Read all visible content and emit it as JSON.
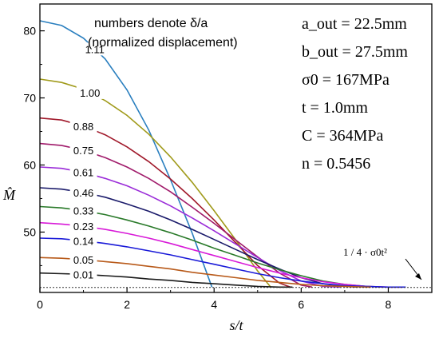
{
  "chart_data": {
    "type": "line",
    "xlabel": "s/t",
    "ylabel": "M̂",
    "xlim": [
      0,
      9
    ],
    "ylim": [
      41,
      84
    ],
    "x_ticks": [
      0,
      2,
      4,
      6,
      8
    ],
    "y_ticks": [
      50,
      60,
      70,
      80
    ],
    "grid": false,
    "annotations": {
      "note_line1": "numbers denote δ/a",
      "note_line2": "(normalized displacement)",
      "reference_label": "1 / 4 · σ0t²",
      "reference_value": 41.75,
      "parameters": [
        "a_out = 22.5mm",
        "b_out = 27.5mm",
        "σ0 = 167MPa",
        "t = 1.0mm",
        "C = 364MPa",
        "n = 0.5456"
      ]
    },
    "series": [
      {
        "name": "1.11",
        "color": "#2a7fbf",
        "x": [
          0,
          0.5,
          1.0,
          1.5,
          2.0,
          2.5,
          3.0,
          3.5,
          3.95
        ],
        "y": [
          81.5,
          80.8,
          78.9,
          75.8,
          71.2,
          65.2,
          57.8,
          49.8,
          41.8
        ]
      },
      {
        "name": "1.00",
        "color": "#a09a1a",
        "x": [
          0,
          0.5,
          1.0,
          1.5,
          2.0,
          2.5,
          3.0,
          3.5,
          4.0,
          4.5,
          5.0,
          5.3
        ],
        "y": [
          72.8,
          72.3,
          71.3,
          69.6,
          67.4,
          64.6,
          61.2,
          57.4,
          53.2,
          48.8,
          44.2,
          41.8
        ]
      },
      {
        "name": "0.88",
        "color": "#a0182a",
        "x": [
          0,
          0.5,
          1.0,
          1.5,
          2.0,
          2.5,
          3.0,
          3.5,
          4.0,
          4.5,
          5.0,
          5.5,
          5.75
        ],
        "y": [
          67.0,
          66.7,
          65.8,
          64.5,
          62.7,
          60.5,
          57.9,
          55.0,
          51.8,
          48.4,
          45.0,
          42.4,
          41.8
        ]
      },
      {
        "name": "0.75",
        "color": "#a01a6a",
        "x": [
          0,
          0.5,
          1.0,
          1.5,
          2.0,
          2.5,
          3.0,
          3.5,
          4.0,
          4.5,
          5.0,
          5.5,
          6.0,
          6.25
        ],
        "y": [
          63.2,
          62.9,
          62.2,
          61.1,
          59.7,
          58.0,
          56.0,
          53.7,
          51.3,
          48.8,
          46.3,
          43.9,
          42.1,
          41.8
        ]
      },
      {
        "name": "0.61",
        "color": "#9a2bd8",
        "x": [
          0,
          0.5,
          1.0,
          1.5,
          2.0,
          2.5,
          3.0,
          3.5,
          4.0,
          4.5,
          5.0,
          5.5,
          6.0,
          6.5,
          6.9
        ],
        "y": [
          59.7,
          59.5,
          58.9,
          58.0,
          56.9,
          55.5,
          53.9,
          52.1,
          50.2,
          48.2,
          46.2,
          44.3,
          42.7,
          41.9,
          41.8
        ]
      },
      {
        "name": "0.46",
        "color": "#1a1a6a",
        "x": [
          0,
          0.5,
          1.0,
          1.5,
          2.0,
          2.5,
          3.0,
          3.5,
          4.0,
          4.5,
          5.0,
          5.5,
          6.0,
          6.5,
          7.0,
          7.3
        ],
        "y": [
          56.6,
          56.4,
          55.9,
          55.2,
          54.2,
          53.1,
          51.8,
          50.4,
          48.9,
          47.4,
          45.9,
          44.5,
          43.2,
          42.3,
          41.9,
          41.8
        ]
      },
      {
        "name": "0.33",
        "color": "#2a7a2a",
        "x": [
          0,
          0.5,
          1.0,
          1.5,
          2.0,
          2.5,
          3.0,
          3.5,
          4.0,
          4.5,
          5.0,
          5.5,
          6.0,
          6.5,
          7.0,
          7.5,
          7.9
        ],
        "y": [
          53.8,
          53.6,
          53.2,
          52.6,
          51.8,
          50.9,
          49.9,
          48.8,
          47.6,
          46.5,
          45.4,
          44.4,
          43.5,
          42.7,
          42.2,
          41.9,
          41.8
        ]
      },
      {
        "name": "0.23",
        "color": "#d81ad8",
        "x": [
          0,
          0.5,
          1.0,
          1.5,
          2.0,
          2.5,
          3.0,
          3.5,
          4.0,
          4.5,
          5.0,
          5.5,
          6.0,
          6.5,
          7.0,
          7.5,
          8.0,
          8.3
        ],
        "y": [
          51.4,
          51.2,
          50.9,
          50.4,
          49.8,
          49.1,
          48.3,
          47.4,
          46.5,
          45.6,
          44.7,
          43.9,
          43.2,
          42.6,
          42.2,
          41.9,
          41.8,
          41.8
        ]
      },
      {
        "name": "0.14",
        "color": "#1a1ad8",
        "x": [
          0,
          0.5,
          1.0,
          1.5,
          2.0,
          2.5,
          3.0,
          3.5,
          4.0,
          4.5,
          5.0,
          5.5,
          6.0,
          6.5,
          7.0,
          7.5,
          8.0,
          8.4
        ],
        "y": [
          49.1,
          49.0,
          48.7,
          48.3,
          47.8,
          47.2,
          46.6,
          45.9,
          45.2,
          44.5,
          43.8,
          43.2,
          42.7,
          42.3,
          42.0,
          41.9,
          41.8,
          41.8
        ]
      },
      {
        "name": "0.05",
        "color": "#b85a1a",
        "x": [
          0,
          0.5,
          1.0,
          1.5,
          2.0,
          2.5,
          3.0,
          3.5,
          4.0,
          4.5,
          5.0,
          5.5,
          6.0,
          6.5,
          7.0,
          7.5,
          7.6
        ],
        "y": [
          46.2,
          46.1,
          45.9,
          45.6,
          45.3,
          44.9,
          44.5,
          44.0,
          43.6,
          43.2,
          42.8,
          42.5,
          42.2,
          42.0,
          41.9,
          41.8,
          41.8
        ]
      },
      {
        "name": "0.01",
        "color": "#1a1a1a",
        "x": [
          0,
          0.5,
          1.0,
          1.5,
          2.0,
          2.5,
          3.0,
          3.5,
          4.0,
          4.5,
          5.0,
          5.5,
          5.8
        ],
        "y": [
          43.9,
          43.8,
          43.7,
          43.5,
          43.3,
          43.0,
          42.8,
          42.5,
          42.3,
          42.1,
          41.9,
          41.8,
          41.8
        ]
      }
    ]
  }
}
